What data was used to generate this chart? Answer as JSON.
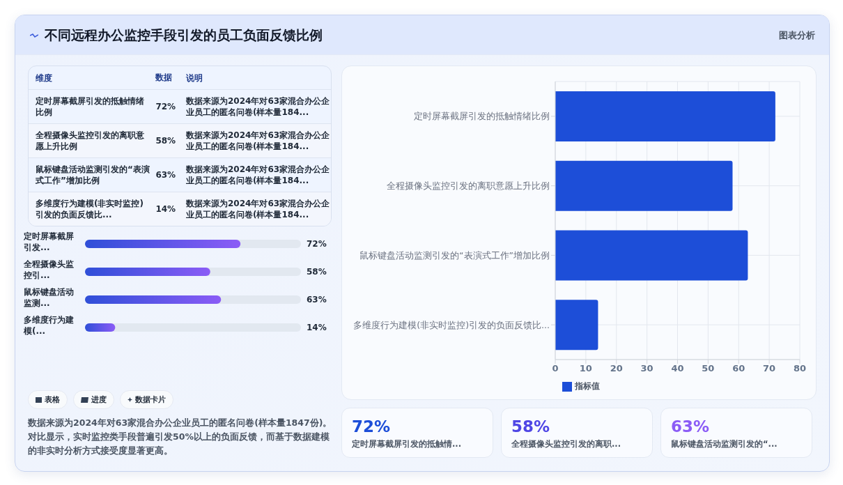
{
  "chart_data": [
    {
      "type": "other",
      "title": "不同远程办公监控手段引发的员工负面反馈比例",
      "annotations": [
        "图表分析"
      ]
    },
    {
      "type": "other",
      "annotations": [
        "维度",
        "数据",
        "说明",
        "定时屏幕截屏引发的抵触情绪比例",
        "72%",
        "数据来源为2024年对63家混合办公企业员工的匿名问卷(样本量184...",
        "全程摄像头监控引发的离职意愿上升比例",
        "58%",
        "数据来源为2024年对63家混合办公企业员工的匿名问卷(样本量184...",
        "鼠标键盘活动监测引发的“表演式工作”增加比例",
        "63%",
        "数据来源为2024年对63家混合办公企业员工的匿名问卷(样本量184...",
        "多维度行为建模(非实时监控)引发的负面反馈比...",
        "14%",
        "数据来源为2024年对63家混合办公企业员工的匿名问卷(样本量184..."
      ]
    },
    {
      "type": "bar",
      "orientation": "horizontal",
      "categories": [
        "定时屏幕截屏引发...",
        "全程摄像头监控引...",
        "鼠标键盘活动监测...",
        "多维度行为建模(..."
      ],
      "values": [
        72,
        58,
        63,
        14
      ],
      "value_labels": [
        "72%",
        "58%",
        "63%",
        "14%"
      ],
      "color": "#2f4fd8",
      "xlim": [
        0,
        100
      ],
      "tick_labels": "y"
    },
    {
      "type": "other",
      "annotations": [
        "表格",
        "进度",
        "数据卡片",
        "数据来源为2024年对63家混合办公企业员工的匿名问卷(样本量1847份)。对比显示，实时监控类手段普遍引发50%以上的负面反馈，而基于数据建模的非实时分析方式接受度显著更高。"
      ]
    },
    {
      "type": "bar",
      "orientation": "horizontal",
      "categories": [
        "定时屏幕截屏引发的抵触情绪比例",
        "全程摄像头监控引发的离职意愿上升比例",
        "鼠标键盘活动监测引发的“表演式工作”增加比例",
        "多维度行为建模(非实时监控)引发的负面反馈比..."
      ],
      "series": [
        {
          "name": "指标值",
          "color": "#1d4ed8",
          "values": [
            72,
            58,
            63,
            14
          ]
        }
      ],
      "xlim": [
        0,
        80
      ],
      "xticks": [
        0,
        10,
        20,
        30,
        40,
        50,
        60,
        70,
        80
      ],
      "grid": true,
      "legend": "bottom"
    },
    {
      "type": "other",
      "annotations": [
        "72%",
        "定时屏幕截屏引发的抵触情...",
        "58%",
        "全程摄像头监控引发的离职...",
        "63%",
        "鼠标键盘活动监测引发的“..."
      ]
    }
  ]
}
